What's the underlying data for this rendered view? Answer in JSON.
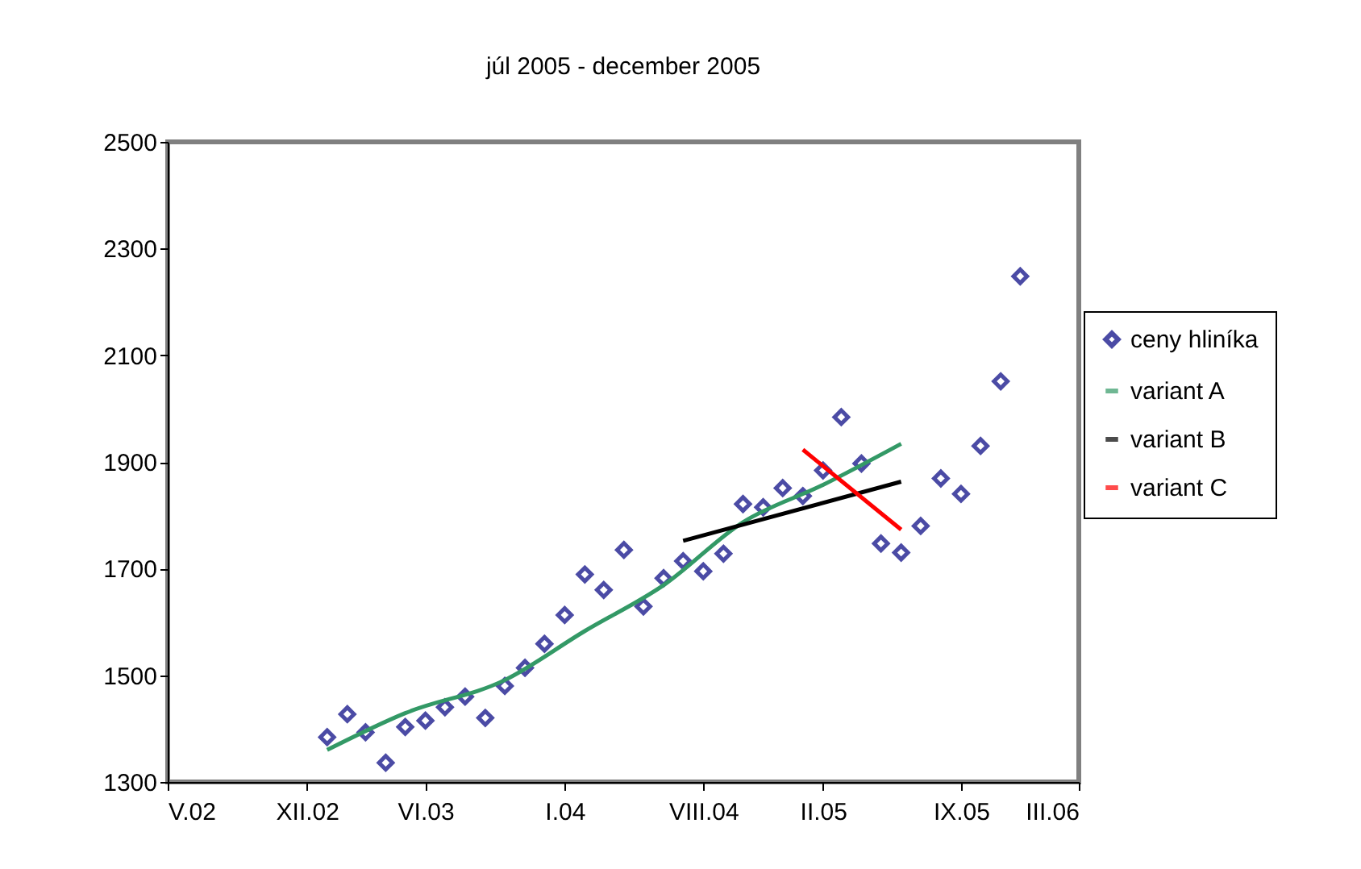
{
  "chart_data": {
    "type": "scatter",
    "title": "júl 2005 - december 2005",
    "x": [
      "2003-01",
      "2003-02",
      "2003-03",
      "2003-04",
      "2003-05",
      "2003-06",
      "2003-07",
      "2003-08",
      "2003-09",
      "2003-10",
      "2003-11",
      "2003-12",
      "2004-01",
      "2004-02",
      "2004-03",
      "2004-04",
      "2004-05",
      "2004-06",
      "2004-07",
      "2004-08",
      "2004-09",
      "2004-10",
      "2004-11",
      "2004-12",
      "2005-01",
      "2005-02",
      "2005-03",
      "2005-04",
      "2005-05",
      "2005-06",
      "2005-07",
      "2005-08",
      "2005-09",
      "2005-10",
      "2005-11",
      "2005-12"
    ],
    "series": [
      {
        "name": "ceny hliníka",
        "color": "#000080",
        "marker": "diamond",
        "values": [
          1384,
          1427,
          1393,
          1336,
          1403,
          1415,
          1440,
          1460,
          1420,
          1480,
          1514,
          1559,
          1613,
          1689,
          1660,
          1735,
          1629,
          1682,
          1714,
          1695,
          1728,
          1821,
          1815,
          1851,
          1836,
          1884,
          1984,
          1897,
          1747,
          1730,
          1780,
          1869,
          1840,
          1930,
          2051,
          2248
        ]
      },
      {
        "name": "variant A",
        "type": "line",
        "color": "#339966",
        "marker": "none",
        "x": [
          "2003-01",
          "2003-05",
          "2003-10",
          "2004-02",
          "2004-06",
          "2004-10",
          "2005-02",
          "2005-06"
        ],
        "values": [
          1360,
          1429,
          1491,
          1583,
          1669,
          1787,
          1857,
          1934
        ]
      },
      {
        "name": "variant B",
        "type": "line",
        "color": "#000000",
        "marker": "none",
        "x": [
          "2004-07",
          "2005-06"
        ],
        "values": [
          1752,
          1863
        ]
      },
      {
        "name": "variant C",
        "type": "line",
        "color": "#ff0000",
        "marker": "none",
        "x": [
          "2005-01",
          "2005-06"
        ],
        "values": [
          1923,
          1773
        ]
      }
    ],
    "xlim": [
      "2002-05",
      "2006-03"
    ],
    "xticks": [
      {
        "value": "2002-05",
        "label": "V.02"
      },
      {
        "value": "2002-12",
        "label": "XII.02"
      },
      {
        "value": "2003-06",
        "label": "VI.03"
      },
      {
        "value": "2004-01",
        "label": "I.04"
      },
      {
        "value": "2004-08",
        "label": "VIII.04"
      },
      {
        "value": "2005-02",
        "label": "II.05"
      },
      {
        "value": "2005-09",
        "label": "IX.05"
      },
      {
        "value": "2006-03",
        "label": "III.06"
      }
    ],
    "ylim": [
      1300,
      2500
    ],
    "yticks": [
      1300,
      1500,
      1700,
      1900,
      2100,
      2300,
      2500
    ],
    "grid": false,
    "legend": "right"
  }
}
